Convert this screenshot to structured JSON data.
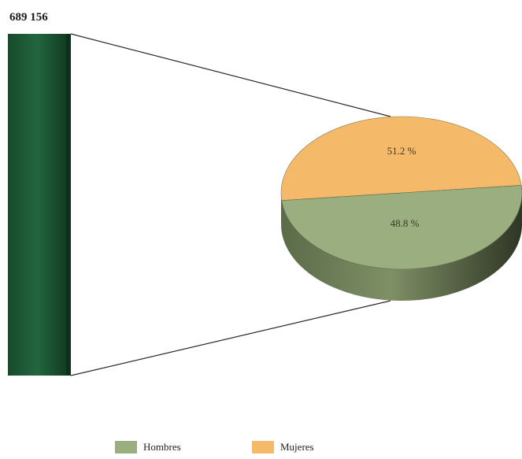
{
  "chart_data": {
    "type": "bar-of-pie",
    "total": {
      "label": "689 156",
      "value": 689156,
      "color": "#1f5e38"
    },
    "series": [
      {
        "name": "Hombres",
        "percent": 48.8,
        "label": "48.8 %",
        "color": "#9aae80"
      },
      {
        "name": "Mujeres",
        "percent": 51.2,
        "label": "51.2 %",
        "color": "#f5b96a"
      }
    ],
    "legend": {
      "position": "bottom"
    }
  }
}
